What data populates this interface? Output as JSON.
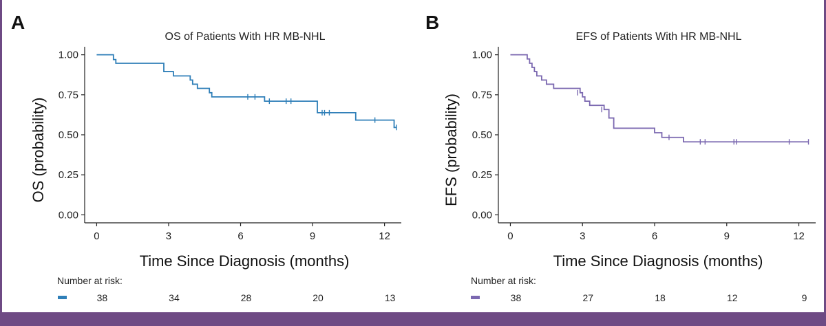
{
  "theme": {
    "frame_color": "#6e4a84"
  },
  "chart_data": [
    {
      "type": "line",
      "panel_label": "A",
      "title": "OS of Patients With HR MB-NHL",
      "xlabel": "Time Since Diagnosis (months)",
      "ylabel": "OS (probability)",
      "xlim": [
        -0.5,
        12.7
      ],
      "ylim": [
        -0.05,
        1.05
      ],
      "x_ticks": [
        0,
        3,
        6,
        9,
        12
      ],
      "y_ticks": [
        0.0,
        0.25,
        0.5,
        0.75,
        1.0
      ],
      "x_tick_labels": [
        "0",
        "3",
        "6",
        "9",
        "12"
      ],
      "y_tick_labels": [
        "0.00",
        "0.25",
        "0.50",
        "0.75",
        "1.00"
      ],
      "grid": false,
      "color": "#2f7fb8",
      "series": [
        {
          "x": [
            0,
            0.7,
            0.8,
            2.8,
            3.2,
            3.9,
            4.0,
            4.2,
            4.7,
            4.8,
            7.0,
            9.2,
            9.3,
            10.8,
            12.4
          ],
          "y": [
            1.0,
            0.97,
            0.947,
            0.895,
            0.868,
            0.842,
            0.816,
            0.79,
            0.763,
            0.737,
            0.71,
            0.638,
            0.638,
            0.592,
            0.546
          ],
          "censored_x": [
            6.3,
            6.6,
            7.2,
            7.9,
            8.1,
            9.4,
            9.5,
            9.7,
            11.6,
            12.5
          ],
          "censored_y": [
            0.737,
            0.737,
            0.71,
            0.71,
            0.71,
            0.638,
            0.638,
            0.638,
            0.592,
            0.546
          ]
        }
      ],
      "risk_table": {
        "title": "Number at risk:",
        "times": [
          0,
          3,
          6,
          9,
          12
        ],
        "counts": [
          "38",
          "34",
          "28",
          "20",
          "13"
        ]
      }
    },
    {
      "type": "line",
      "panel_label": "B",
      "title": "EFS of Patients With HR MB-NHL",
      "xlabel": "Time Since Diagnosis (months)",
      "ylabel": "EFS (probability)",
      "xlim": [
        -0.5,
        12.7
      ],
      "ylim": [
        -0.05,
        1.05
      ],
      "x_ticks": [
        0,
        3,
        6,
        9,
        12
      ],
      "y_ticks": [
        0.0,
        0.25,
        0.5,
        0.75,
        1.0
      ],
      "x_tick_labels": [
        "0",
        "3",
        "6",
        "9",
        "12"
      ],
      "y_tick_labels": [
        "0.00",
        "0.25",
        "0.50",
        "0.75",
        "1.00"
      ],
      "grid": false,
      "color": "#7b68b0",
      "series": [
        {
          "x": [
            0,
            0.7,
            0.8,
            0.9,
            1.0,
            1.1,
            1.3,
            1.5,
            1.8,
            2.0,
            2.9,
            3.0,
            3.1,
            3.3,
            3.9,
            4.1,
            4.3,
            6.0,
            6.3,
            7.2
          ],
          "y": [
            1.0,
            0.974,
            0.947,
            0.921,
            0.895,
            0.868,
            0.842,
            0.816,
            0.79,
            0.79,
            0.763,
            0.737,
            0.71,
            0.684,
            0.658,
            0.605,
            0.541,
            0.513,
            0.484,
            0.456
          ],
          "censored_x": [
            2.8,
            3.8,
            6.6,
            7.9,
            8.1,
            9.3,
            9.4,
            11.6,
            12.4
          ],
          "censored_y": [
            0.763,
            0.658,
            0.484,
            0.456,
            0.456,
            0.456,
            0.456,
            0.456,
            0.456
          ]
        }
      ],
      "risk_table": {
        "title": "Number at risk:",
        "times": [
          0,
          3,
          6,
          9,
          12
        ],
        "counts": [
          "38",
          "27",
          "18",
          "12",
          "9"
        ]
      }
    }
  ]
}
